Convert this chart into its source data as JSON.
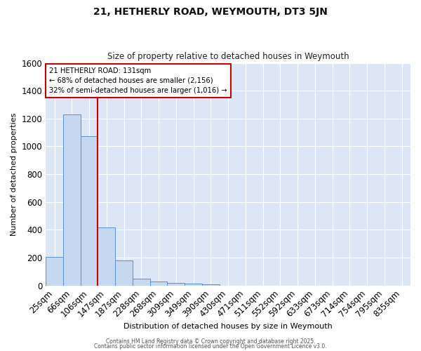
{
  "title1": "21, HETHERLY ROAD, WEYMOUTH, DT3 5JN",
  "title2": "Size of property relative to detached houses in Weymouth",
  "xlabel": "Distribution of detached houses by size in Weymouth",
  "ylabel": "Number of detached properties",
  "categories": [
    "25sqm",
    "66sqm",
    "106sqm",
    "147sqm",
    "187sqm",
    "228sqm",
    "268sqm",
    "309sqm",
    "349sqm",
    "390sqm",
    "430sqm",
    "471sqm",
    "511sqm",
    "552sqm",
    "592sqm",
    "633sqm",
    "673sqm",
    "714sqm",
    "754sqm",
    "795sqm",
    "835sqm"
  ],
  "values": [
    205,
    1230,
    1075,
    415,
    178,
    48,
    28,
    18,
    12,
    10,
    0,
    0,
    0,
    0,
    0,
    0,
    0,
    0,
    0,
    0,
    0
  ],
  "bar_color": "#c5d8f0",
  "bar_edge_color": "#5b8ecf",
  "background_color": "#dde6f5",
  "grid_color": "#ffffff",
  "vline_color": "#cc0000",
  "vline_x_index": 2,
  "annotation_text": "21 HETHERLY ROAD: 131sqm\n← 68% of detached houses are smaller (2,156)\n32% of semi-detached houses are larger (1,016) →",
  "annotation_box_edge": "#cc0000",
  "ylim": [
    0,
    1600
  ],
  "yticks": [
    0,
    200,
    400,
    600,
    800,
    1000,
    1200,
    1400,
    1600
  ],
  "footer_text1": "Contains HM Land Registry data © Crown copyright and database right 2025.",
  "footer_text2": "Contains public sector information licensed under the Open Government Licence v3.0."
}
